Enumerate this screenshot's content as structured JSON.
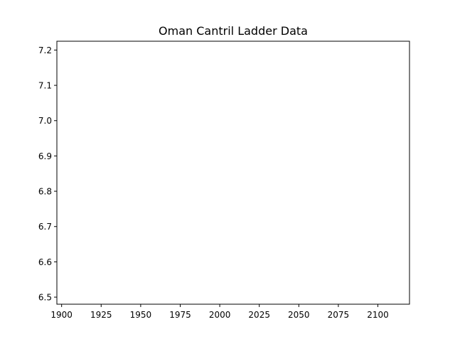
{
  "chart_data": {
    "type": "line",
    "title": "Oman Cantril Ladder Data",
    "xlabel": "",
    "ylabel": "",
    "x": [],
    "series": [],
    "xlim": [
      1897,
      2120
    ],
    "ylim": [
      6.48,
      7.225
    ],
    "xticks": [
      1900,
      1925,
      1950,
      1975,
      2000,
      2025,
      2050,
      2075,
      2100
    ],
    "yticks": [
      6.5,
      6.6,
      6.7,
      6.8,
      6.9,
      7.0,
      7.1,
      7.2
    ],
    "xtick_labels": [
      "1900",
      "1925",
      "1950",
      "1975",
      "2000",
      "2025",
      "2050",
      "2075",
      "2100"
    ],
    "ytick_labels": [
      "6.5",
      "6.6",
      "6.7",
      "6.8",
      "6.9",
      "7.0",
      "7.1",
      "7.2"
    ],
    "grid": false,
    "legend": "none",
    "colors": {
      "axis": "#000000",
      "background": "#ffffff"
    }
  }
}
